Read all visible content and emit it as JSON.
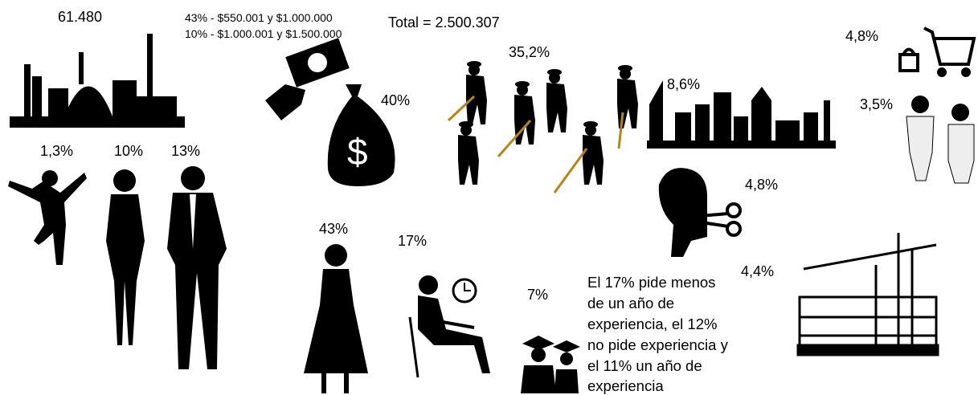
{
  "factory": {
    "label": "61.480"
  },
  "salary_ranges": [
    "43% - $550.001 y $1.000.000",
    "10% - $1.000.001 y $1.500.000"
  ],
  "total": "Total = 2.500.307",
  "money": {
    "label": "40%"
  },
  "farm_workers": {
    "label": "35,2%"
  },
  "city": {
    "label": "8,6%"
  },
  "commerce": {
    "label": "4,8%"
  },
  "health": {
    "label": "3,5%"
  },
  "people": [
    {
      "label": "1,3%"
    },
    {
      "label": "10%"
    },
    {
      "label": "13%"
    }
  ],
  "hairdresser": {
    "label": "4,8%"
  },
  "construction": {
    "label": "4,4%"
  },
  "schoolgirl": {
    "label": "43%"
  },
  "student": {
    "label": "17%"
  },
  "graduates": {
    "label": "7%"
  },
  "experience_note": [
    "El 17% pide menos",
    "de un año de",
    "experiencia, el 12%",
    "no pide experiencia y",
    "el 11% un año de",
    "experiencia"
  ]
}
